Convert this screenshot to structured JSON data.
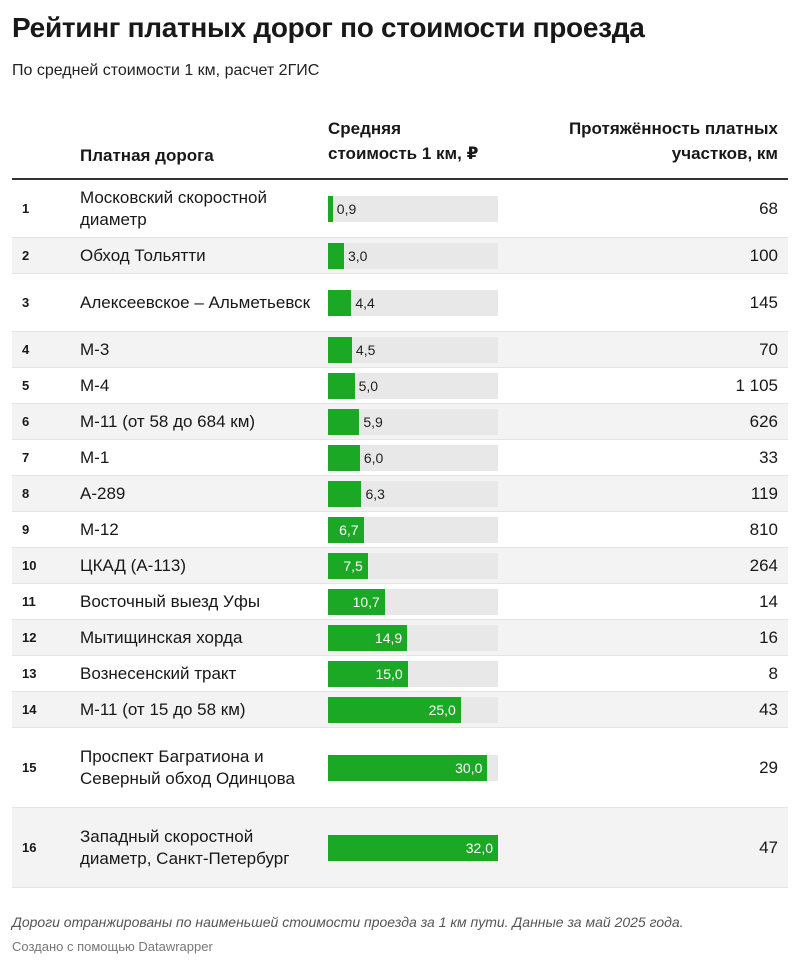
{
  "title": "Рейтинг платных дорог по стоимости проезда",
  "subtitle": "По средней стоимости 1 км, расчет 2ГИС",
  "columns": {
    "road": "Платная дорога",
    "cost_line1": "Средняя",
    "cost_line2": "стоимость 1 км, ₽",
    "length_line1": "Протяжённость платных",
    "length_line2": "участков, км"
  },
  "colors": {
    "bar": "#1ba825",
    "track": "#e8e8e8"
  },
  "chart_data": {
    "type": "table",
    "xlim": [
      0,
      32
    ],
    "rows": [
      {
        "rank": "1",
        "road": "Московский скоростной диаметр",
        "cost": 0.9,
        "cost_label": "0,9",
        "length": "68"
      },
      {
        "rank": "2",
        "road": "Обход Тольятти",
        "cost": 3.0,
        "cost_label": "3,0",
        "length": "100"
      },
      {
        "rank": "3",
        "road": "Алексеевское – Альметьевск",
        "cost": 4.4,
        "cost_label": "4,4",
        "length": "145"
      },
      {
        "rank": "4",
        "road": "М-3",
        "cost": 4.5,
        "cost_label": "4,5",
        "length": "70"
      },
      {
        "rank": "5",
        "road": "М-4",
        "cost": 5.0,
        "cost_label": "5,0",
        "length": "1 105"
      },
      {
        "rank": "6",
        "road": "М-11 (от 58 до 684 км)",
        "cost": 5.9,
        "cost_label": "5,9",
        "length": "626"
      },
      {
        "rank": "7",
        "road": "М-1",
        "cost": 6.0,
        "cost_label": "6,0",
        "length": "33"
      },
      {
        "rank": "8",
        "road": "А-289",
        "cost": 6.3,
        "cost_label": "6,3",
        "length": "119"
      },
      {
        "rank": "9",
        "road": "М-12",
        "cost": 6.7,
        "cost_label": "6,7",
        "length": "810"
      },
      {
        "rank": "10",
        "road": "ЦКАД (А-113)",
        "cost": 7.5,
        "cost_label": "7,5",
        "length": "264"
      },
      {
        "rank": "11",
        "road": "Восточный выезд Уфы",
        "cost": 10.7,
        "cost_label": "10,7",
        "length": "14"
      },
      {
        "rank": "12",
        "road": "Мытищинская хорда",
        "cost": 14.9,
        "cost_label": "14,9",
        "length": "16"
      },
      {
        "rank": "13",
        "road": "Вознесенский тракт",
        "cost": 15.0,
        "cost_label": "15,0",
        "length": "8"
      },
      {
        "rank": "14",
        "road": "М-11 (от 15 до 58 км)",
        "cost": 25.0,
        "cost_label": "25,0",
        "length": "43"
      },
      {
        "rank": "15",
        "road": "Проспект Багратиона и Северный обход Одинцова",
        "cost": 30.0,
        "cost_label": "30,0",
        "length": "29"
      },
      {
        "rank": "16",
        "road": "Западный скоростной диаметр, Санкт-Петербург",
        "cost": 32.0,
        "cost_label": "32,0",
        "length": "47"
      }
    ]
  },
  "notes": "Дороги отранжированы по наименьшей стоимости проезда за 1 км пути. Данные за май 2025 года.",
  "credit": "Создано с помощью Datawrapper"
}
